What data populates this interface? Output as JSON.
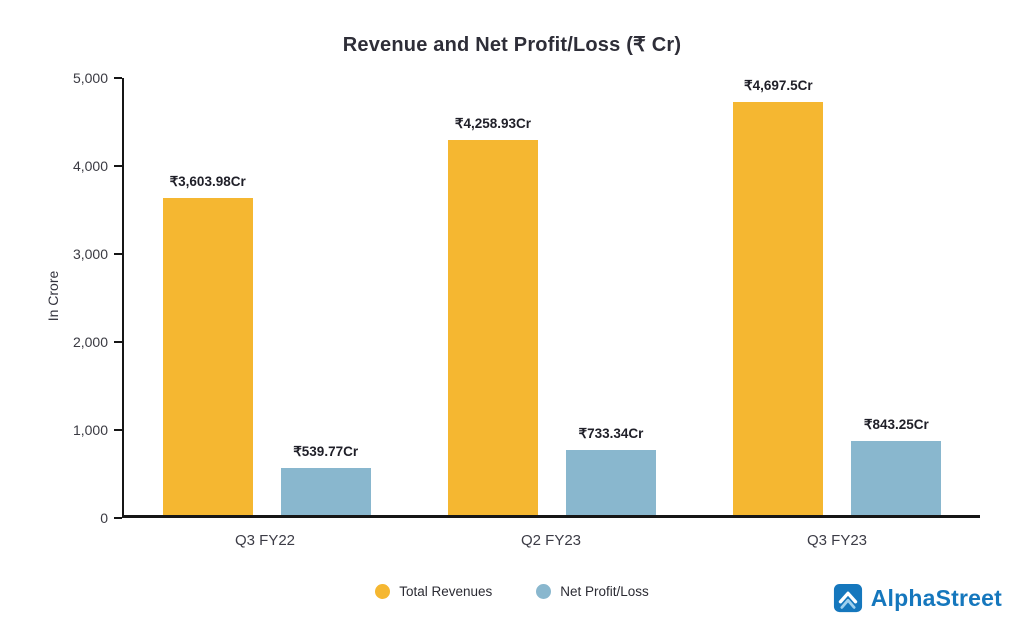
{
  "chart_data": {
    "type": "bar",
    "title": "Revenue and Net Profit/Loss (₹ Cr)",
    "ylabel": "In Crore",
    "xlabel": "",
    "categories": [
      "Q3 FY22",
      "Q2 FY23",
      "Q3 FY23"
    ],
    "series": [
      {
        "name": "Total Revenues",
        "color": "#F5B731",
        "values": [
          3603.98,
          4258.93,
          4697.5
        ],
        "value_labels": [
          "₹3,603.98Cr",
          "₹4,258.93Cr",
          "₹4,697.5Cr"
        ]
      },
      {
        "name": "Net Profit/Loss",
        "color": "#89B7CE",
        "values": [
          539.77,
          733.34,
          843.25
        ],
        "value_labels": [
          "₹539.77Cr",
          "₹733.34Cr",
          "₹843.25Cr"
        ]
      }
    ],
    "ylim": [
      0,
      5000
    ],
    "ytick_labels": [
      "5,000",
      "4,000",
      "3,000",
      "2,000",
      "1,000",
      "0"
    ],
    "grid": false,
    "legend_position": "bottom"
  },
  "branding": {
    "logo_text": "AlphaStreet",
    "logo_color": "#1577bd"
  }
}
